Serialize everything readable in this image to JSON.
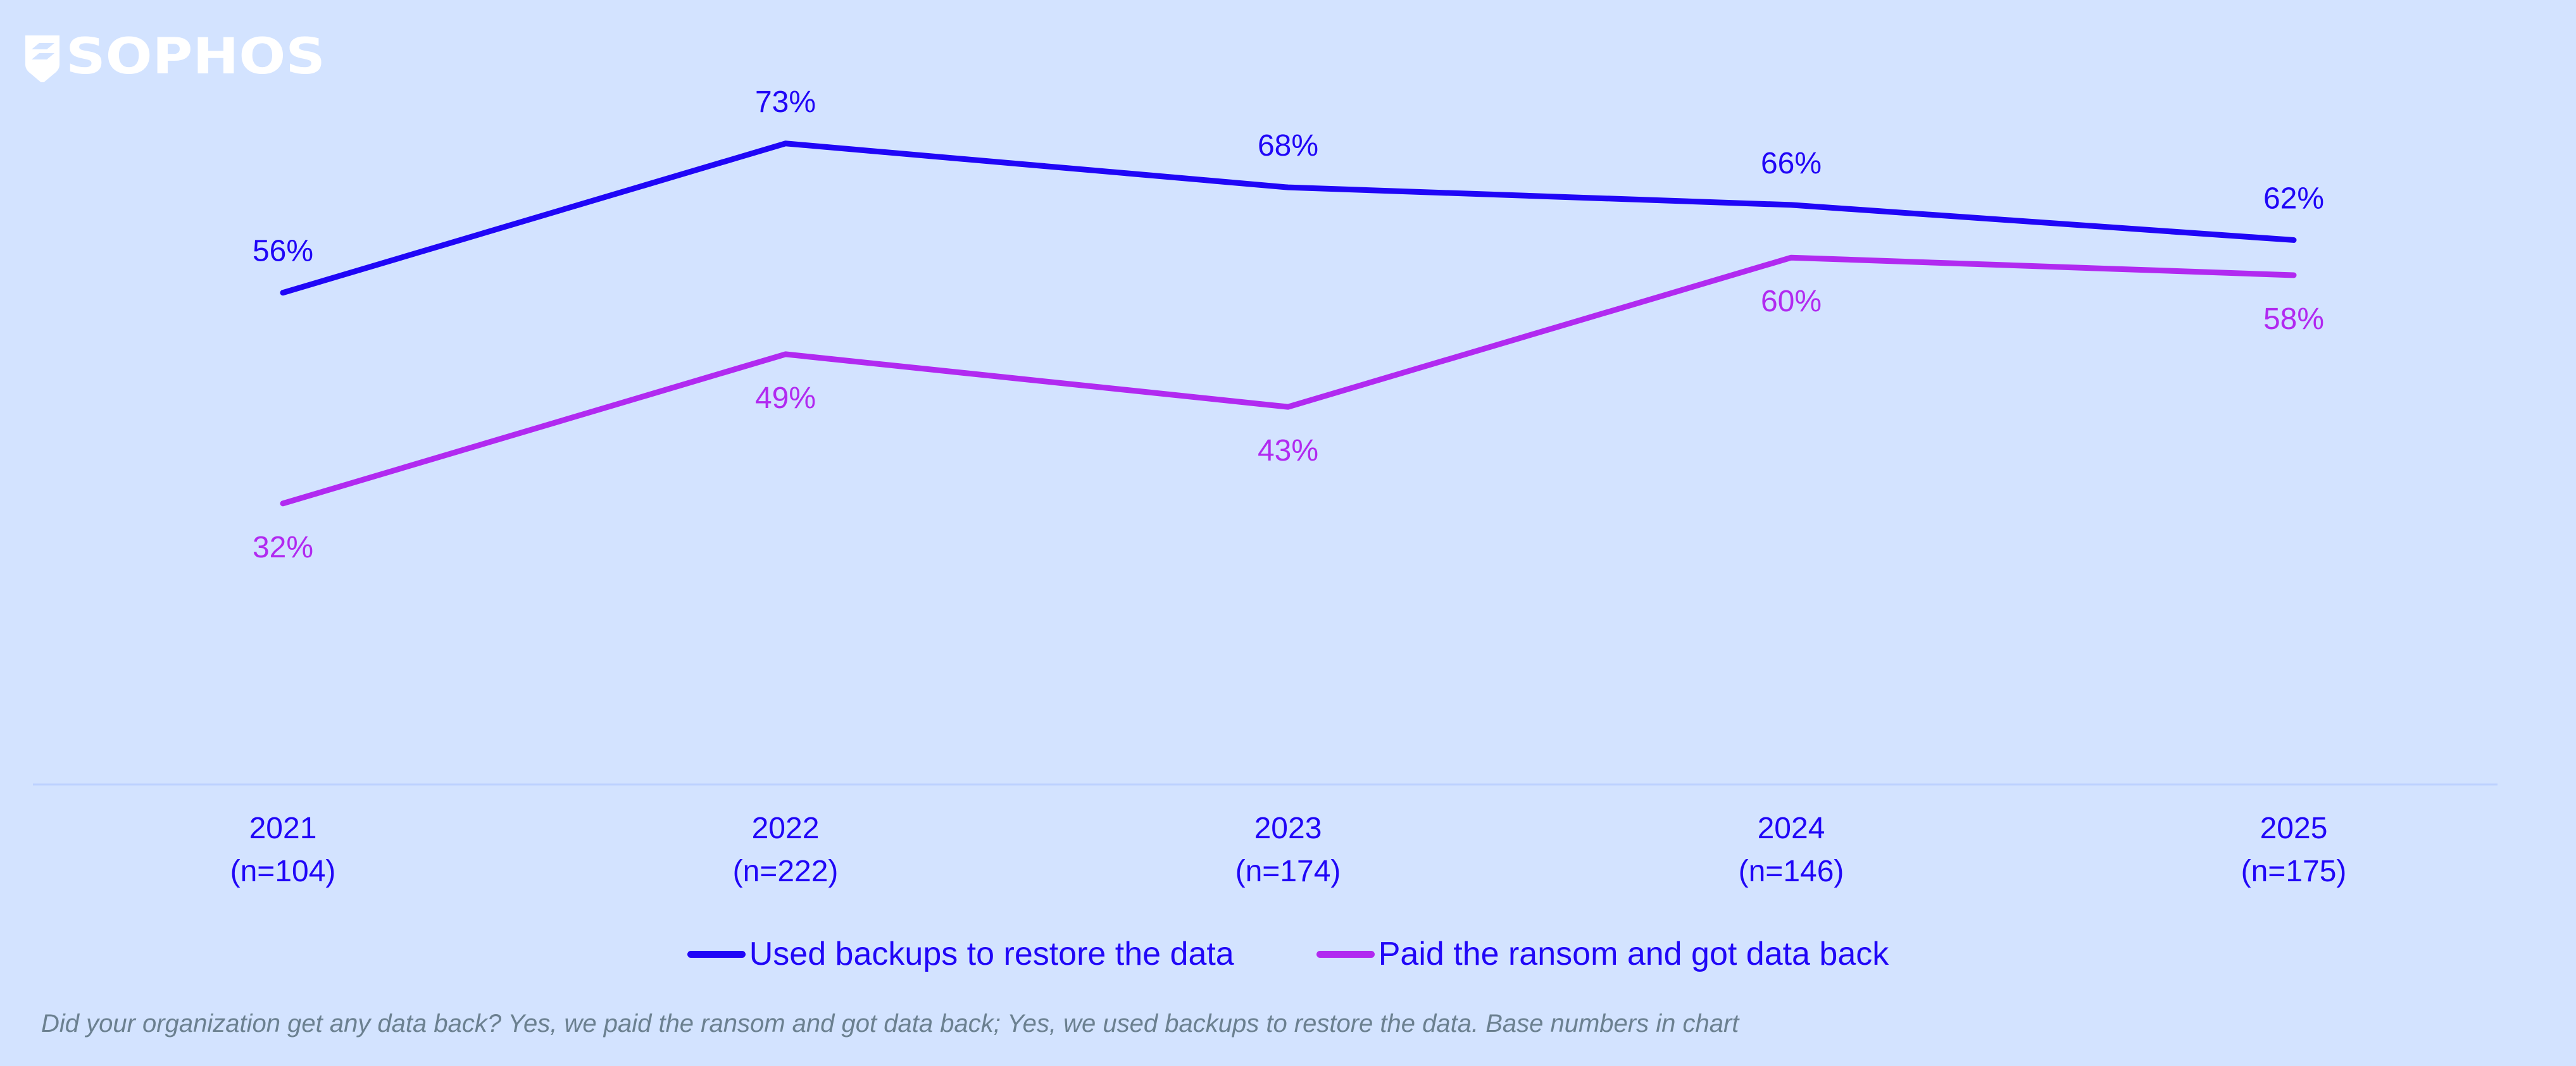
{
  "logo": {
    "text": "SOPHOS",
    "color": "#FFFFFF"
  },
  "chart_data": {
    "type": "line",
    "categories": [
      "2021",
      "2022",
      "2023",
      "2024",
      "2025"
    ],
    "category_sublabels": [
      "(n=104)",
      "(n=222)",
      "(n=174)",
      "(n=146)",
      "(n=175)"
    ],
    "series": [
      {
        "name": "Used backups to restore the data",
        "color": "#2006F7",
        "values": [
          56,
          73,
          68,
          66,
          62
        ],
        "labels": [
          "56%",
          "73%",
          "68%",
          "66%",
          "62%"
        ]
      },
      {
        "name": "Paid the ransom and got data back",
        "color": "#B12AF0",
        "values": [
          32,
          49,
          43,
          60,
          58
        ],
        "labels": [
          "32%",
          "49%",
          "43%",
          "60%",
          "58%"
        ]
      }
    ],
    "ylim": [
      0,
      100
    ],
    "unit": "%",
    "grid": false,
    "legend_position": "bottom"
  },
  "footnote": "Did your organization get any data back? Yes, we paid the ransom and got data back; Yes, we used backups to restore the data. Base numbers in chart",
  "colors": {
    "background": "#D3E3FF",
    "axis_text": "#2006F7",
    "baseline": "#BDD2FF",
    "footnote": "#6B8090"
  }
}
